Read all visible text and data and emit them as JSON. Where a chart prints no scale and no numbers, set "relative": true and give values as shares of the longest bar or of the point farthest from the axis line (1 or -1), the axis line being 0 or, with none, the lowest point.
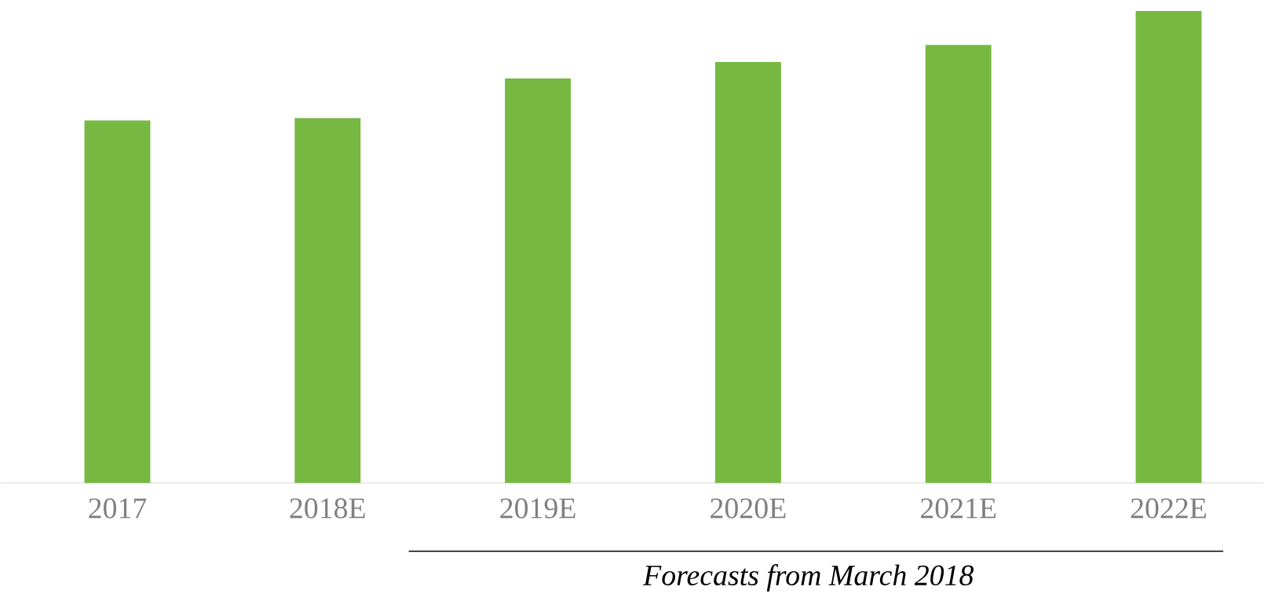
{
  "chart_data": {
    "type": "bar",
    "relative": true,
    "categories": [
      "2017",
      "2018E",
      "2019E",
      "2020E",
      "2021E",
      "2022E"
    ],
    "values": [
      0.768,
      0.773,
      0.857,
      0.892,
      0.928,
      1
    ],
    "color": "#77b843",
    "annotations": [
      "Forecasts from March 2018"
    ]
  }
}
